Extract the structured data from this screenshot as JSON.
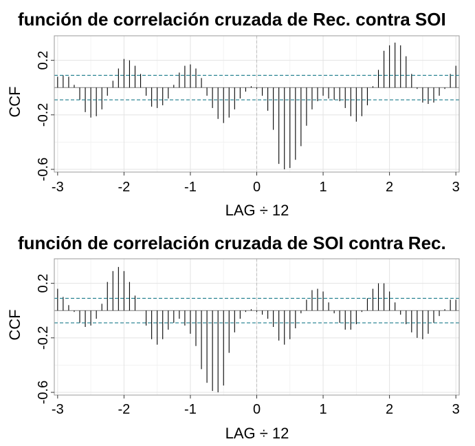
{
  "chart_data": [
    {
      "type": "bar",
      "title": "función de correlación cruzada de Rec. contra SOI",
      "xlabel": "LAG ÷ 12",
      "ylabel": "CCF",
      "xlim": [
        -3.05,
        3.05
      ],
      "ylim": [
        -0.62,
        0.38
      ],
      "xticks": [
        -3,
        -2,
        -1,
        0,
        1,
        2,
        3
      ],
      "xtick_labels": [
        "-3",
        "-2",
        "-1",
        "0",
        "1",
        "2",
        "3"
      ],
      "yticks": [
        0.2,
        -0.2,
        -0.6
      ],
      "ytick_labels": [
        "0.2",
        "-0.2",
        "-0.6"
      ],
      "ci": 0.09,
      "grid": true,
      "x": [
        -3.0,
        -2.9167,
        -2.8333,
        -2.75,
        -2.6667,
        -2.5833,
        -2.5,
        -2.4167,
        -2.3333,
        -2.25,
        -2.1667,
        -2.0833,
        -2.0,
        -1.9167,
        -1.8333,
        -1.75,
        -1.6667,
        -1.5833,
        -1.5,
        -1.4167,
        -1.3333,
        -1.25,
        -1.1667,
        -1.0833,
        -1.0,
        -0.9167,
        -0.8333,
        -0.75,
        -0.6667,
        -0.5833,
        -0.5,
        -0.4167,
        -0.3333,
        -0.25,
        -0.1667,
        -0.0833,
        0.0,
        0.0833,
        0.1667,
        0.25,
        0.3333,
        0.4167,
        0.5,
        0.5833,
        0.6667,
        0.75,
        0.8333,
        0.9167,
        1.0,
        1.0833,
        1.1667,
        1.25,
        1.3333,
        1.4167,
        1.5,
        1.5833,
        1.6667,
        1.75,
        1.8333,
        1.9167,
        2.0,
        2.0833,
        2.1667,
        2.25,
        2.3333,
        2.4167,
        2.5,
        2.5833,
        2.6667,
        2.75,
        2.8333,
        2.9167,
        3.0
      ],
      "values": [
        0.08,
        0.09,
        0.08,
        0.02,
        -0.09,
        -0.18,
        -0.22,
        -0.21,
        -0.16,
        -0.06,
        0.05,
        0.14,
        0.21,
        0.2,
        0.16,
        0.1,
        -0.06,
        -0.14,
        -0.15,
        -0.13,
        -0.08,
        0.02,
        0.11,
        0.16,
        0.17,
        0.14,
        0.07,
        -0.06,
        -0.15,
        -0.23,
        -0.26,
        -0.22,
        -0.16,
        -0.08,
        -0.03,
        0.01,
        -0.01,
        -0.06,
        -0.17,
        -0.31,
        -0.56,
        -0.6,
        -0.59,
        -0.53,
        -0.43,
        -0.28,
        -0.16,
        -0.1,
        -0.06,
        -0.08,
        -0.09,
        -0.1,
        -0.15,
        -0.21,
        -0.25,
        -0.21,
        -0.13,
        0.01,
        0.13,
        0.27,
        0.31,
        0.33,
        0.31,
        0.23,
        0.1,
        -0.01,
        -0.11,
        -0.12,
        -0.11,
        -0.06,
        -0.01,
        0.1,
        0.16
      ]
    },
    {
      "type": "bar",
      "title": "función de correlación cruzada de SOI contra Rec.",
      "xlabel": "LAG ÷ 12",
      "ylabel": "CCF",
      "xlim": [
        -3.05,
        3.05
      ],
      "ylim": [
        -0.62,
        0.38
      ],
      "xticks": [
        -3,
        -2,
        -1,
        0,
        1,
        2,
        3
      ],
      "xtick_labels": [
        "-3",
        "-2",
        "-1",
        "0",
        "1",
        "2",
        "3"
      ],
      "yticks": [
        0.2,
        -0.2,
        -0.6
      ],
      "ytick_labels": [
        "0.2",
        "-0.2",
        "-0.6"
      ],
      "ci": 0.09,
      "grid": true,
      "x": [
        -3.0,
        -2.9167,
        -2.8333,
        -2.75,
        -2.6667,
        -2.5833,
        -2.5,
        -2.4167,
        -2.3333,
        -2.25,
        -2.1667,
        -2.0833,
        -2.0,
        -1.9167,
        -1.8333,
        -1.75,
        -1.6667,
        -1.5833,
        -1.5,
        -1.4167,
        -1.3333,
        -1.25,
        -1.1667,
        -1.0833,
        -1.0,
        -0.9167,
        -0.8333,
        -0.75,
        -0.6667,
        -0.5833,
        -0.5,
        -0.4167,
        -0.3333,
        -0.25,
        -0.1667,
        -0.0833,
        0.0,
        0.0833,
        0.1667,
        0.25,
        0.3333,
        0.4167,
        0.5,
        0.5833,
        0.6667,
        0.75,
        0.8333,
        0.9167,
        1.0,
        1.0833,
        1.1667,
        1.25,
        1.3333,
        1.4167,
        1.5,
        1.5833,
        1.6667,
        1.75,
        1.8333,
        1.9167,
        2.0,
        2.0833,
        2.1667,
        2.25,
        2.3333,
        2.4167,
        2.5,
        2.5833,
        2.6667,
        2.75,
        2.8333,
        2.9167,
        3.0
      ],
      "values": [
        0.16,
        0.1,
        0.04,
        -0.01,
        -0.09,
        -0.12,
        -0.11,
        -0.06,
        0.05,
        0.21,
        0.29,
        0.32,
        0.29,
        0.21,
        0.11,
        0.0,
        -0.11,
        -0.21,
        -0.25,
        -0.21,
        -0.14,
        -0.09,
        -0.06,
        -0.11,
        -0.17,
        -0.26,
        -0.43,
        -0.53,
        -0.59,
        -0.6,
        -0.55,
        -0.31,
        -0.16,
        -0.06,
        -0.01,
        0.01,
        -0.01,
        -0.03,
        -0.06,
        -0.12,
        -0.22,
        -0.25,
        -0.21,
        -0.13,
        -0.02,
        0.08,
        0.15,
        0.16,
        0.14,
        0.06,
        -0.02,
        -0.09,
        -0.14,
        -0.14,
        -0.1,
        -0.01,
        0.09,
        0.16,
        0.2,
        0.2,
        0.14,
        0.06,
        -0.03,
        -0.1,
        -0.16,
        -0.2,
        -0.21,
        -0.17,
        -0.09,
        -0.04,
        0.01,
        0.08,
        0.08
      ]
    }
  ]
}
